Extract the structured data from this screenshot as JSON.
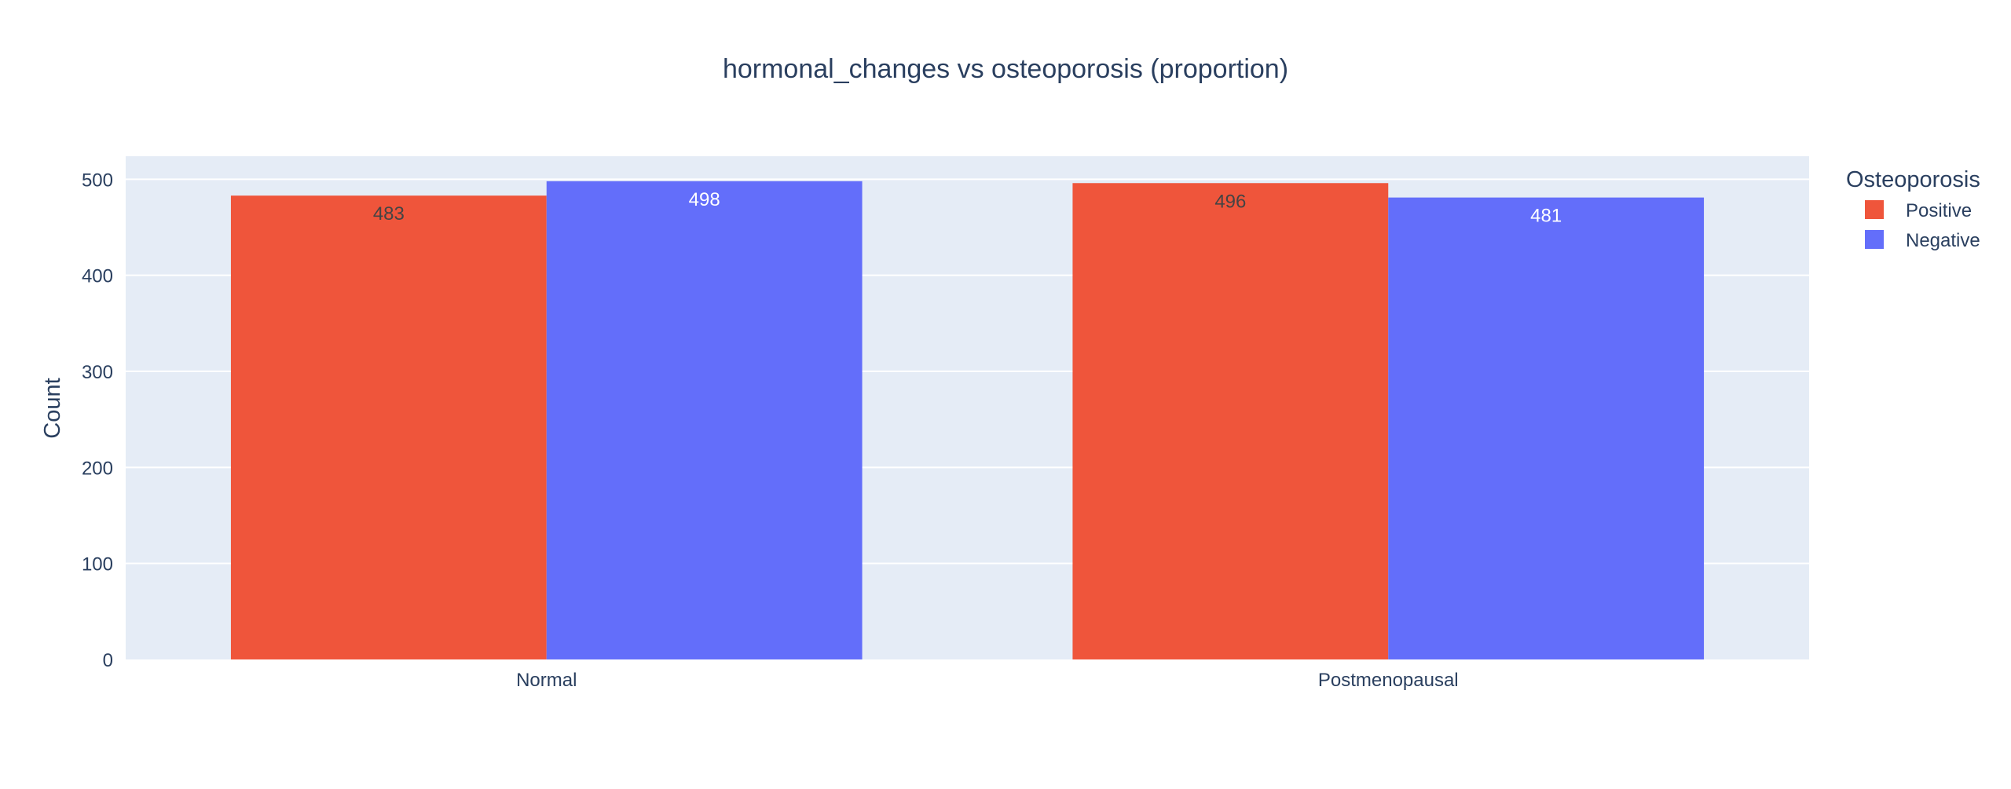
{
  "chart_data": {
    "type": "bar",
    "title": "hormonal_changes vs osteoporosis (proportion)",
    "xlabel": "",
    "ylabel": "Count",
    "categories": [
      "Normal",
      "Postmenopausal"
    ],
    "series": [
      {
        "name": "Positive",
        "values": [
          483,
          496
        ],
        "color": "#EF553B",
        "label_color": "#444444"
      },
      {
        "name": "Negative",
        "values": [
          498,
          481
        ],
        "color": "#636EFA",
        "label_color": "#ffffff"
      }
    ],
    "ylim": [
      0,
      524
    ],
    "yticks": [
      0,
      100,
      200,
      300,
      400,
      500
    ],
    "grid": true,
    "legend": {
      "title": "Osteoporosis",
      "position": "top-right"
    },
    "colors": {
      "plot_background": "#E5ECF6",
      "grid": "#ffffff",
      "text": "#2a3f5f",
      "tick_text": "#2a3f5f"
    }
  }
}
